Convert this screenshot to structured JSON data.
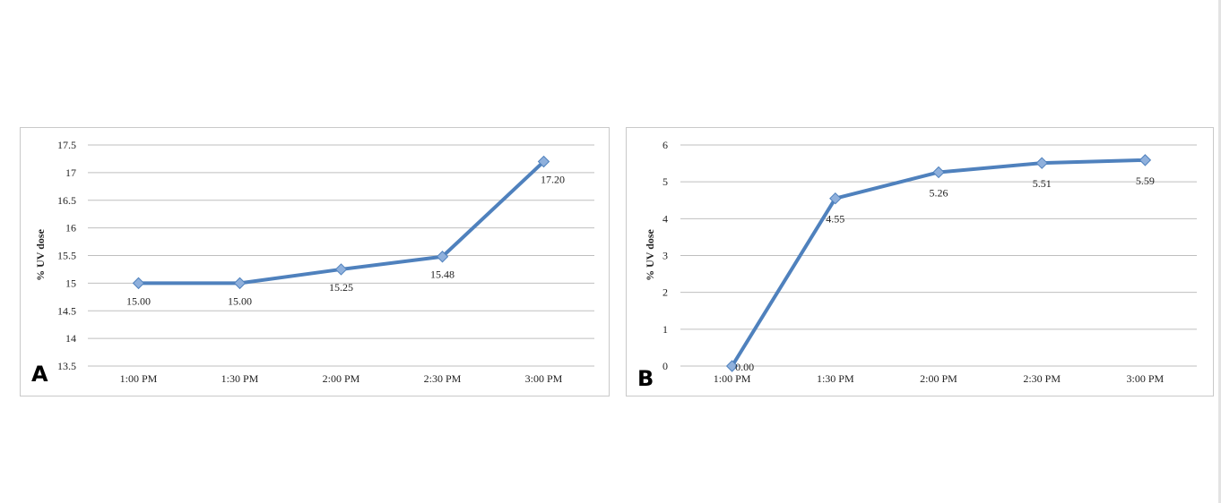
{
  "chart_data": [
    {
      "panel_label": "A",
      "type": "line",
      "ylabel": "% UV dose",
      "ylim": [
        13.5,
        17.5
      ],
      "yticks": [
        "17.5",
        "17",
        "16.5",
        "16",
        "15.5",
        "15",
        "14.5",
        "14",
        "13.5"
      ],
      "categories": [
        "1:00 PM",
        "1:30 PM",
        "2:00 PM",
        "2:30 PM",
        "3:00 PM"
      ],
      "series": [
        {
          "values": [
            15.0,
            15.0,
            15.25,
            15.48,
            17.2
          ],
          "data_labels": [
            "15.00",
            "15.00",
            "15.25",
            "15.48",
            "17.20"
          ]
        }
      ],
      "grid": true,
      "color": "#4f81bd"
    },
    {
      "panel_label": "B",
      "type": "line",
      "ylabel": "% UV dose",
      "ylim": [
        0,
        6
      ],
      "yticks": [
        "6",
        "5",
        "4",
        "3",
        "2",
        "1",
        "0"
      ],
      "categories": [
        "1:00 PM",
        "1:30 PM",
        "2:00 PM",
        "2:30 PM",
        "3:00 PM"
      ],
      "series": [
        {
          "values": [
            0.0,
            4.55,
            5.26,
            5.51,
            5.59
          ],
          "data_labels": [
            "0.00",
            "4.55",
            "5.26",
            "5.51",
            "5.59"
          ]
        }
      ],
      "grid": true,
      "color": "#4f81bd"
    }
  ]
}
